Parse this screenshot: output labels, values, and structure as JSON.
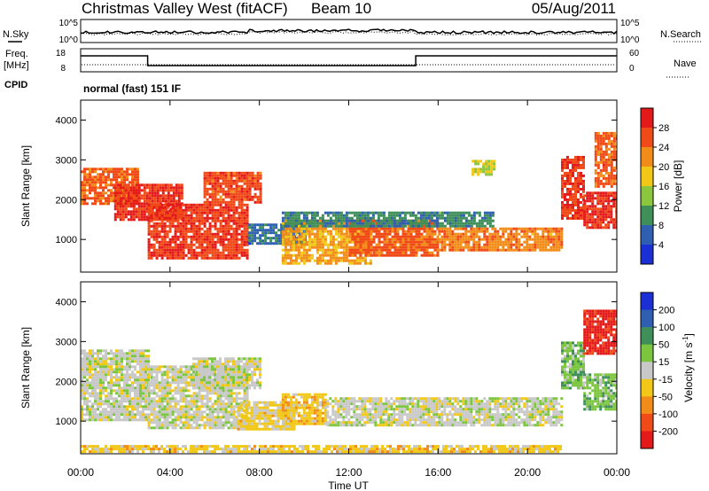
{
  "header": {
    "station": "Christmas Valley West (fitACF)",
    "beam": "Beam 10",
    "date": "05/Aug/2011"
  },
  "noise_panel": {
    "left_label": "N.Sky",
    "left_ticks": [
      "10^5",
      "10^0"
    ],
    "right_label": "N.Search",
    "right_ticks": [
      "10^5",
      "10^0"
    ]
  },
  "freq_panel": {
    "left_label_1": "Freq.",
    "left_label_2": "[MHz]",
    "left_ticks": [
      "18",
      "8"
    ],
    "right_label": "Nave",
    "right_ticks": [
      "60",
      "0"
    ],
    "cpid_label": "CPID",
    "mode_text": "normal (fast) 151 IF"
  },
  "x_axis": {
    "ticks": [
      "00:00",
      "04:00",
      "08:00",
      "12:00",
      "16:00",
      "20:00",
      "00:00"
    ],
    "label": "Time UT"
  },
  "power_colorbar": {
    "label": "Power [dB]",
    "ticks": [
      "4",
      "8",
      "12",
      "16",
      "20",
      "24",
      "28"
    ],
    "colors": [
      "#1a2fd6",
      "#2f5fb0",
      "#3f8f5a",
      "#8cc63f",
      "#f2c818",
      "#f28c18",
      "#f04a18",
      "#e41a1a"
    ]
  },
  "velocity_colorbar": {
    "label": "Velocity [m s-1]",
    "ticks": [
      "200",
      "100",
      "50",
      "15",
      "-15",
      "-50",
      "-100",
      "-200"
    ],
    "colors": [
      "#1a2fd6",
      "#2f5fb0",
      "#3f8f5a",
      "#7cc63f",
      "#c8c8c8",
      "#f2c818",
      "#f28c18",
      "#f04a18",
      "#e41a1a"
    ]
  },
  "chart_data": [
    {
      "type": "heatmap",
      "title": "Power",
      "xlabel": "Time UT",
      "ylabel": "Slant Range [km]",
      "xlim": [
        "00:00",
        "24:00"
      ],
      "ylim": [
        180,
        4500
      ],
      "yticks": [
        1000,
        2000,
        3000,
        4000
      ],
      "value_label": "Power [dB]",
      "vlim": [
        2,
        30
      ],
      "echo_regions": [
        {
          "t0": 0.0,
          "t1": 2.5,
          "r0": 1900,
          "r1": 2800,
          "value": 24
        },
        {
          "t0": 1.5,
          "t1": 4.5,
          "r0": 1500,
          "r1": 2400,
          "value": 27
        },
        {
          "t0": 3.0,
          "t1": 7.5,
          "r0": 500,
          "r1": 1900,
          "value": 26
        },
        {
          "t0": 5.5,
          "t1": 8.0,
          "r0": 1900,
          "r1": 2700,
          "value": 25
        },
        {
          "t0": 7.5,
          "t1": 10.0,
          "r0": 900,
          "r1": 1400,
          "value": 8
        },
        {
          "t0": 9.0,
          "t1": 13.0,
          "r0": 400,
          "r1": 1500,
          "value": 20
        },
        {
          "t0": 12.0,
          "t1": 16.0,
          "r0": 600,
          "r1": 1500,
          "value": 24
        },
        {
          "t0": 9.0,
          "t1": 18.5,
          "r0": 1300,
          "r1": 1700,
          "value": 10
        },
        {
          "t0": 16.0,
          "t1": 21.5,
          "r0": 700,
          "r1": 1300,
          "value": 22
        },
        {
          "t0": 17.5,
          "t1": 18.5,
          "r0": 2600,
          "r1": 3000,
          "value": 16
        },
        {
          "t0": 21.5,
          "t1": 22.5,
          "r0": 1500,
          "r1": 3100,
          "value": 26
        },
        {
          "t0": 22.5,
          "t1": 24.0,
          "r0": 1300,
          "r1": 2200,
          "value": 27
        },
        {
          "t0": 23.0,
          "t1": 24.0,
          "r0": 2300,
          "r1": 3700,
          "value": 24
        }
      ]
    },
    {
      "type": "heatmap",
      "title": "Velocity",
      "xlabel": "Time UT",
      "ylabel": "Slant Range [km]",
      "xlim": [
        "00:00",
        "24:00"
      ],
      "ylim": [
        180,
        4500
      ],
      "yticks": [
        1000,
        2000,
        3000,
        4000
      ],
      "value_label": "Velocity [m s-1]",
      "vlim": [
        -250,
        250
      ],
      "echo_regions": [
        {
          "t0": 0.0,
          "t1": 3.0,
          "r0": 1000,
          "r1": 2800,
          "value": 0
        },
        {
          "t0": 3.0,
          "t1": 7.5,
          "r0": 800,
          "r1": 2400,
          "value": 0
        },
        {
          "t0": 5.0,
          "t1": 8.0,
          "r0": 1800,
          "r1": 2600,
          "value": 0
        },
        {
          "t0": 7.0,
          "t1": 9.5,
          "r0": 800,
          "r1": 1500,
          "value": -40
        },
        {
          "t0": 9.0,
          "t1": 11.0,
          "r0": 900,
          "r1": 1700,
          "value": -60
        },
        {
          "t0": 11.0,
          "t1": 21.5,
          "r0": 900,
          "r1": 1600,
          "value": 0
        },
        {
          "t0": 0.0,
          "t1": 21.5,
          "r0": 200,
          "r1": 400,
          "value": -50
        },
        {
          "t0": 21.5,
          "t1": 22.5,
          "r0": 1800,
          "r1": 3000,
          "value": 60
        },
        {
          "t0": 22.5,
          "t1": 24.0,
          "r0": 1300,
          "r1": 2200,
          "value": 60
        },
        {
          "t0": 22.5,
          "t1": 24.0,
          "r0": 2700,
          "r1": 3800,
          "value": -220
        }
      ]
    }
  ]
}
